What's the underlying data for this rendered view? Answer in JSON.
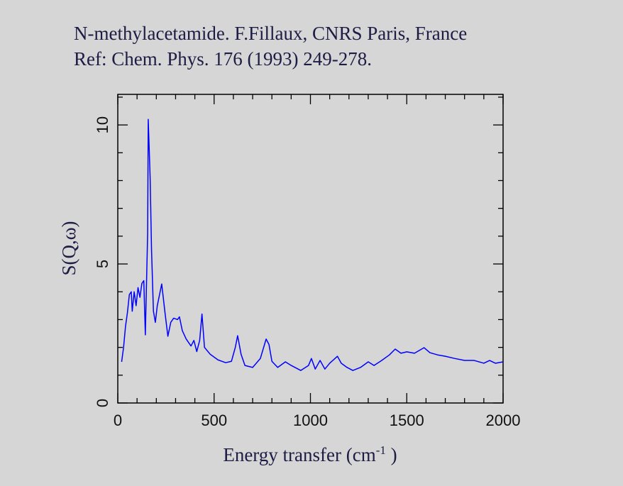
{
  "chart_data": {
    "type": "line",
    "title": [
      "N-methylacetamide. F.Fillaux, CNRS Paris, France",
      "Ref: Chem. Phys. 176 (1993) 249-278."
    ],
    "xlabel": [
      "Energy transfer (cm",
      "-1",
      " )"
    ],
    "ylabel": "S(Q,ω)",
    "xlim": [
      0,
      2000
    ],
    "ylim": [
      0,
      11.1
    ],
    "xticks": [
      0,
      500,
      1000,
      1500,
      2000
    ],
    "yticks": [
      0,
      5,
      10
    ],
    "series": [
      {
        "color": "#0000ff",
        "x": [
          20,
          30,
          40,
          50,
          60,
          70,
          75,
          85,
          95,
          105,
          115,
          125,
          135,
          143,
          155,
          158,
          168,
          175,
          185,
          195,
          205,
          228,
          245,
          260,
          275,
          290,
          310,
          320,
          335,
          355,
          380,
          395,
          410,
          425,
          437,
          450,
          480,
          520,
          560,
          590,
          610,
          622,
          640,
          660,
          700,
          740,
          770,
          785,
          800,
          830,
          870,
          900,
          950,
          990,
          1005,
          1025,
          1050,
          1075,
          1100,
          1140,
          1160,
          1190,
          1220,
          1260,
          1300,
          1330,
          1370,
          1410,
          1440,
          1470,
          1500,
          1540,
          1590,
          1620,
          1660,
          1700,
          1750,
          1800,
          1850,
          1900,
          1930,
          1960,
          2000
        ],
        "values": [
          1.48,
          2.0,
          2.75,
          3.25,
          3.9,
          4.0,
          3.3,
          4.0,
          3.5,
          4.15,
          3.8,
          4.3,
          4.4,
          2.45,
          6.1,
          10.2,
          8.1,
          5.55,
          3.3,
          2.9,
          3.5,
          4.28,
          3.25,
          2.4,
          2.9,
          3.05,
          3.0,
          3.1,
          2.6,
          2.3,
          2.05,
          2.25,
          1.85,
          2.25,
          3.2,
          2.0,
          1.75,
          1.55,
          1.45,
          1.5,
          2.0,
          2.42,
          1.75,
          1.35,
          1.28,
          1.6,
          2.3,
          2.1,
          1.5,
          1.28,
          1.48,
          1.35,
          1.17,
          1.35,
          1.6,
          1.22,
          1.53,
          1.22,
          1.43,
          1.68,
          1.43,
          1.28,
          1.17,
          1.28,
          1.48,
          1.35,
          1.53,
          1.73,
          1.94,
          1.79,
          1.84,
          1.79,
          1.99,
          1.81,
          1.73,
          1.68,
          1.6,
          1.53,
          1.53,
          1.43,
          1.53,
          1.43,
          1.48
        ]
      }
    ]
  }
}
